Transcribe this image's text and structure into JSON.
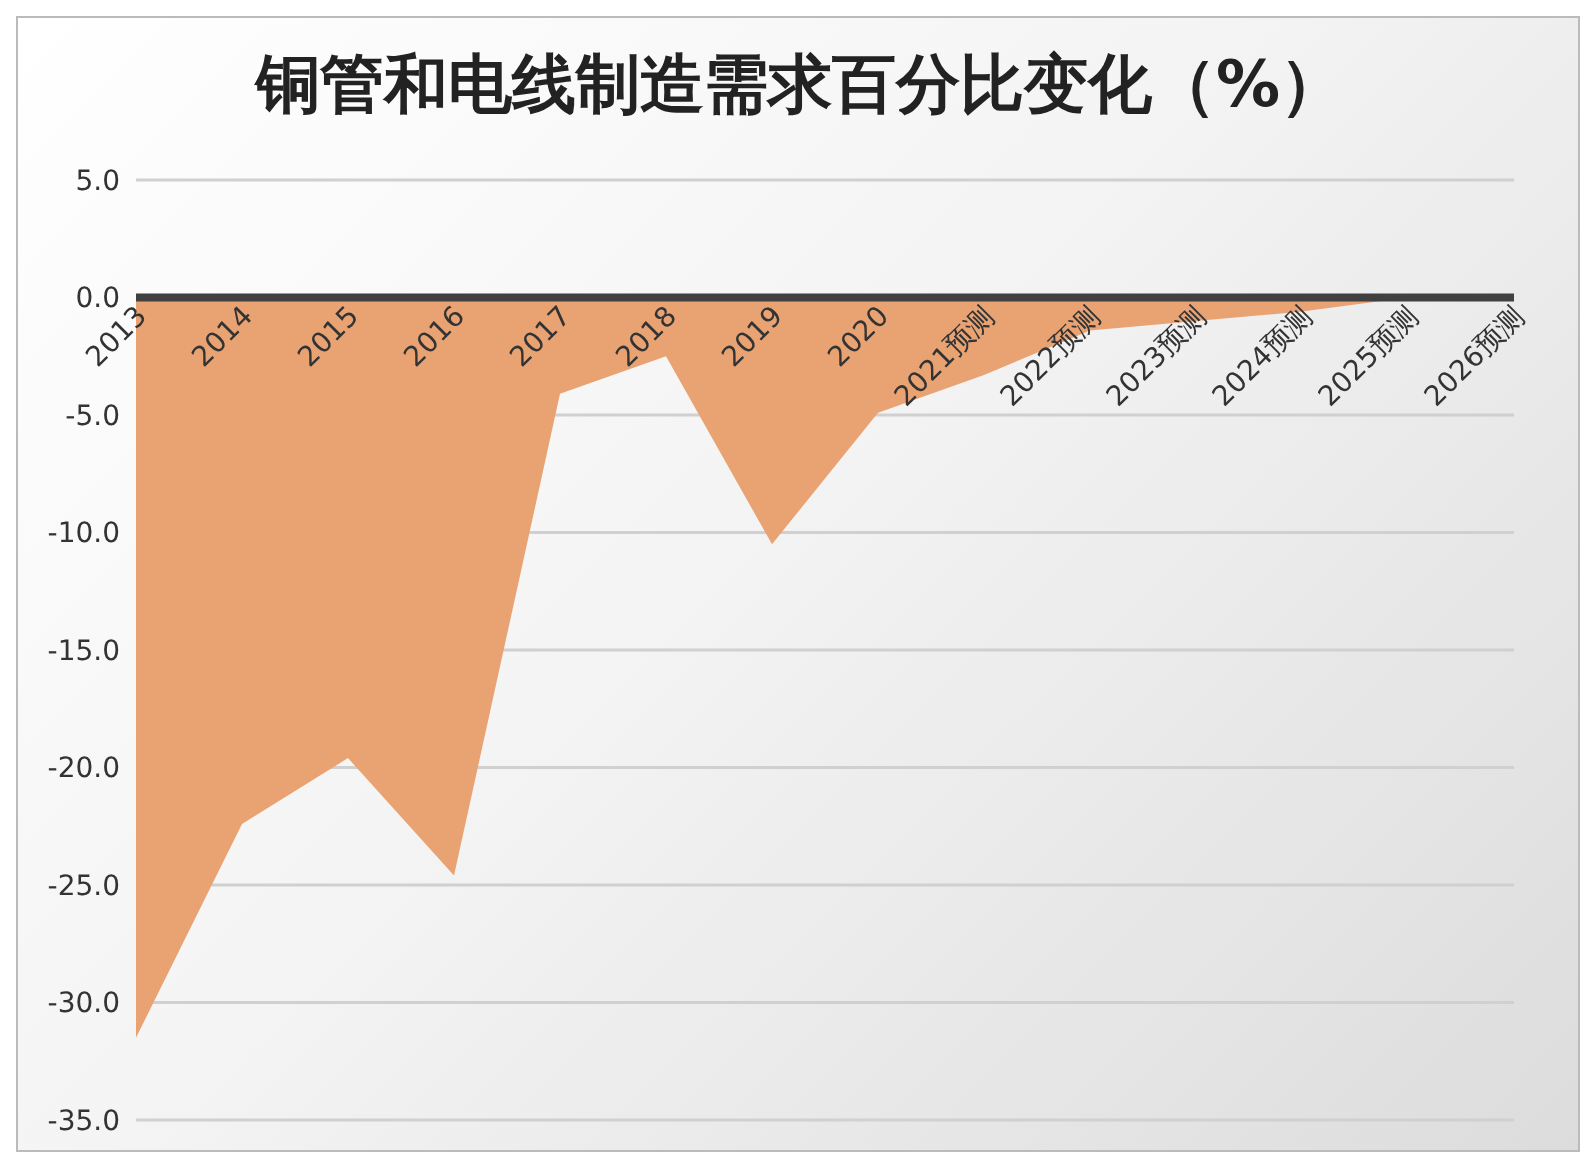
{
  "chart_data": {
    "type": "area",
    "title": "铜管和电线制造需求百分比变化（%）",
    "categories": [
      "2013",
      "2014",
      "2015",
      "2016",
      "2017",
      "2018",
      "2019",
      "2020",
      "2021预测",
      "2022预测",
      "2023预测",
      "2024预测",
      "2025预测",
      "2026预测"
    ],
    "series": [
      {
        "color": "#e9a272",
        "values": [
          -31.5,
          -22.4,
          -19.6,
          -24.6,
          -4.1,
          -2.5,
          -10.5,
          -4.9,
          -3.3,
          -1.4,
          -1.0,
          -0.6,
          0.0,
          0.0
        ]
      }
    ],
    "ylim": [
      -35,
      5
    ],
    "yticks": [
      {
        "value": -35,
        "label": "-35.0"
      },
      {
        "value": -30,
        "label": "-30.0"
      },
      {
        "value": -25,
        "label": "-25.0"
      },
      {
        "value": -20,
        "label": "-20.0"
      },
      {
        "value": -15,
        "label": "-15.0"
      },
      {
        "value": -10,
        "label": "-10.0"
      },
      {
        "value": -5,
        "label": "-5.0"
      },
      {
        "value": 0,
        "label": "0.0"
      },
      {
        "value": 5,
        "label": "5.0"
      }
    ],
    "grid": "y",
    "legend": false
  }
}
